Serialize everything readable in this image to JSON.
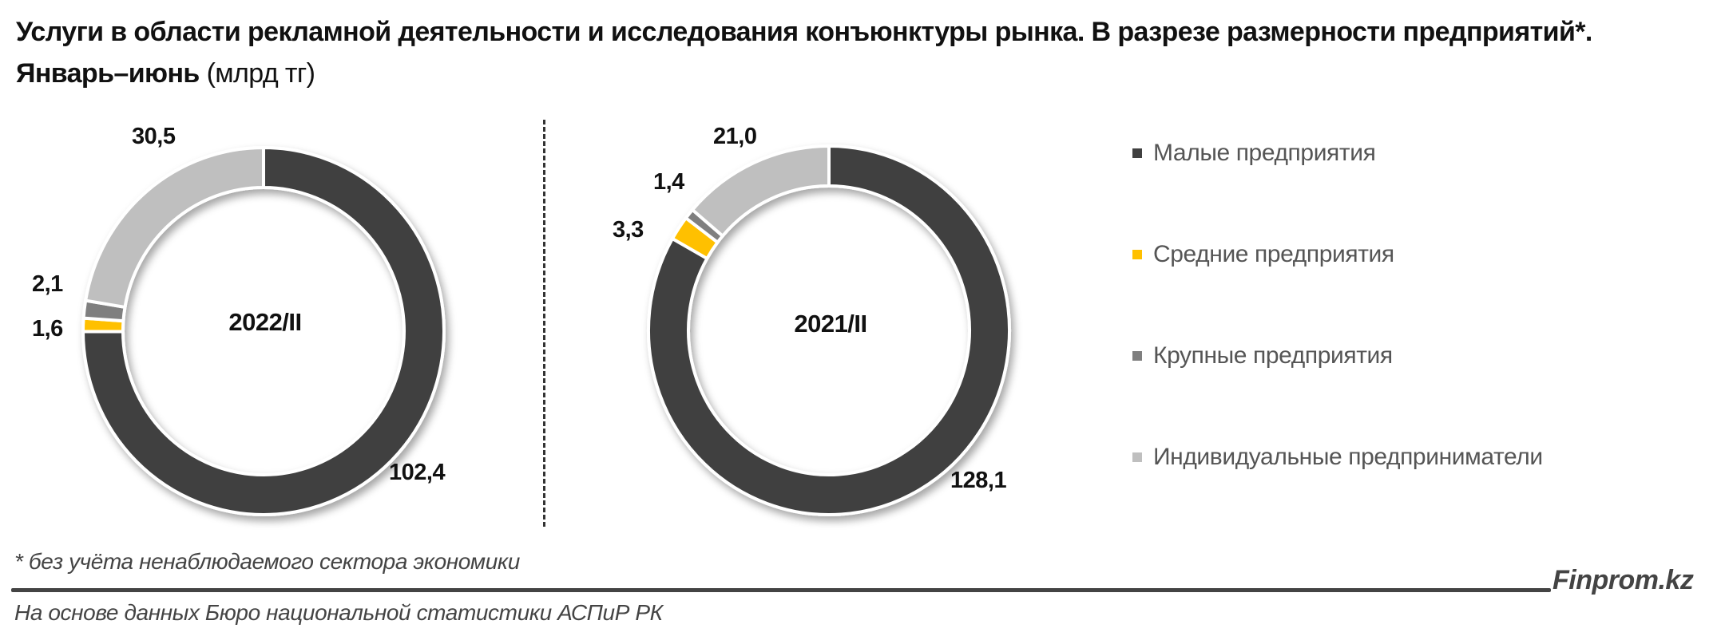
{
  "title": {
    "main": "Услуги в области рекламной деятельности и исследования конъюнктуры рынка. В разрезе размерности предприятий*. Январь–июнь",
    "unit": "(млрд тг)"
  },
  "legend": {
    "items": [
      {
        "label": "Малые предприятия",
        "color": "#404040"
      },
      {
        "label": "Средние предприятия",
        "color": "#FFC000"
      },
      {
        "label": "Крупные предприятия",
        "color": "#7F7F7F"
      },
      {
        "label": "Индивидуальные предприниматели",
        "color": "#BFBFBF"
      }
    ]
  },
  "chart_data": [
    {
      "type": "pie",
      "subtype": "donut",
      "title": "2022/II",
      "categories": [
        "Малые предприятия",
        "Средние предприятия",
        "Крупные предприятия",
        "Индивидуальные предприниматели"
      ],
      "values": [
        102.4,
        1.6,
        2.1,
        30.5
      ],
      "labels": [
        "102,4",
        "1,6",
        "2,1",
        "30,5"
      ],
      "colors": [
        "#404040",
        "#FFC000",
        "#7F7F7F",
        "#BFBFBF"
      ],
      "unit": "млрд тг"
    },
    {
      "type": "pie",
      "subtype": "donut",
      "title": "2021/II",
      "categories": [
        "Малые предприятия",
        "Средние предприятия",
        "Крупные предприятия",
        "Индивидуальные предприниматели"
      ],
      "values": [
        128.1,
        3.3,
        1.4,
        21.0
      ],
      "labels": [
        "128,1",
        "3,3",
        "1,4",
        "21,0"
      ],
      "colors": [
        "#404040",
        "#FFC000",
        "#7F7F7F",
        "#BFBFBF"
      ],
      "unit": "млрд тг"
    }
  ],
  "footnote": "* без учёта ненаблюдаемого сектора экономики",
  "brand": "Finprom.kz",
  "source": "На основе данных Бюро национальной статистики АСПиР РК"
}
